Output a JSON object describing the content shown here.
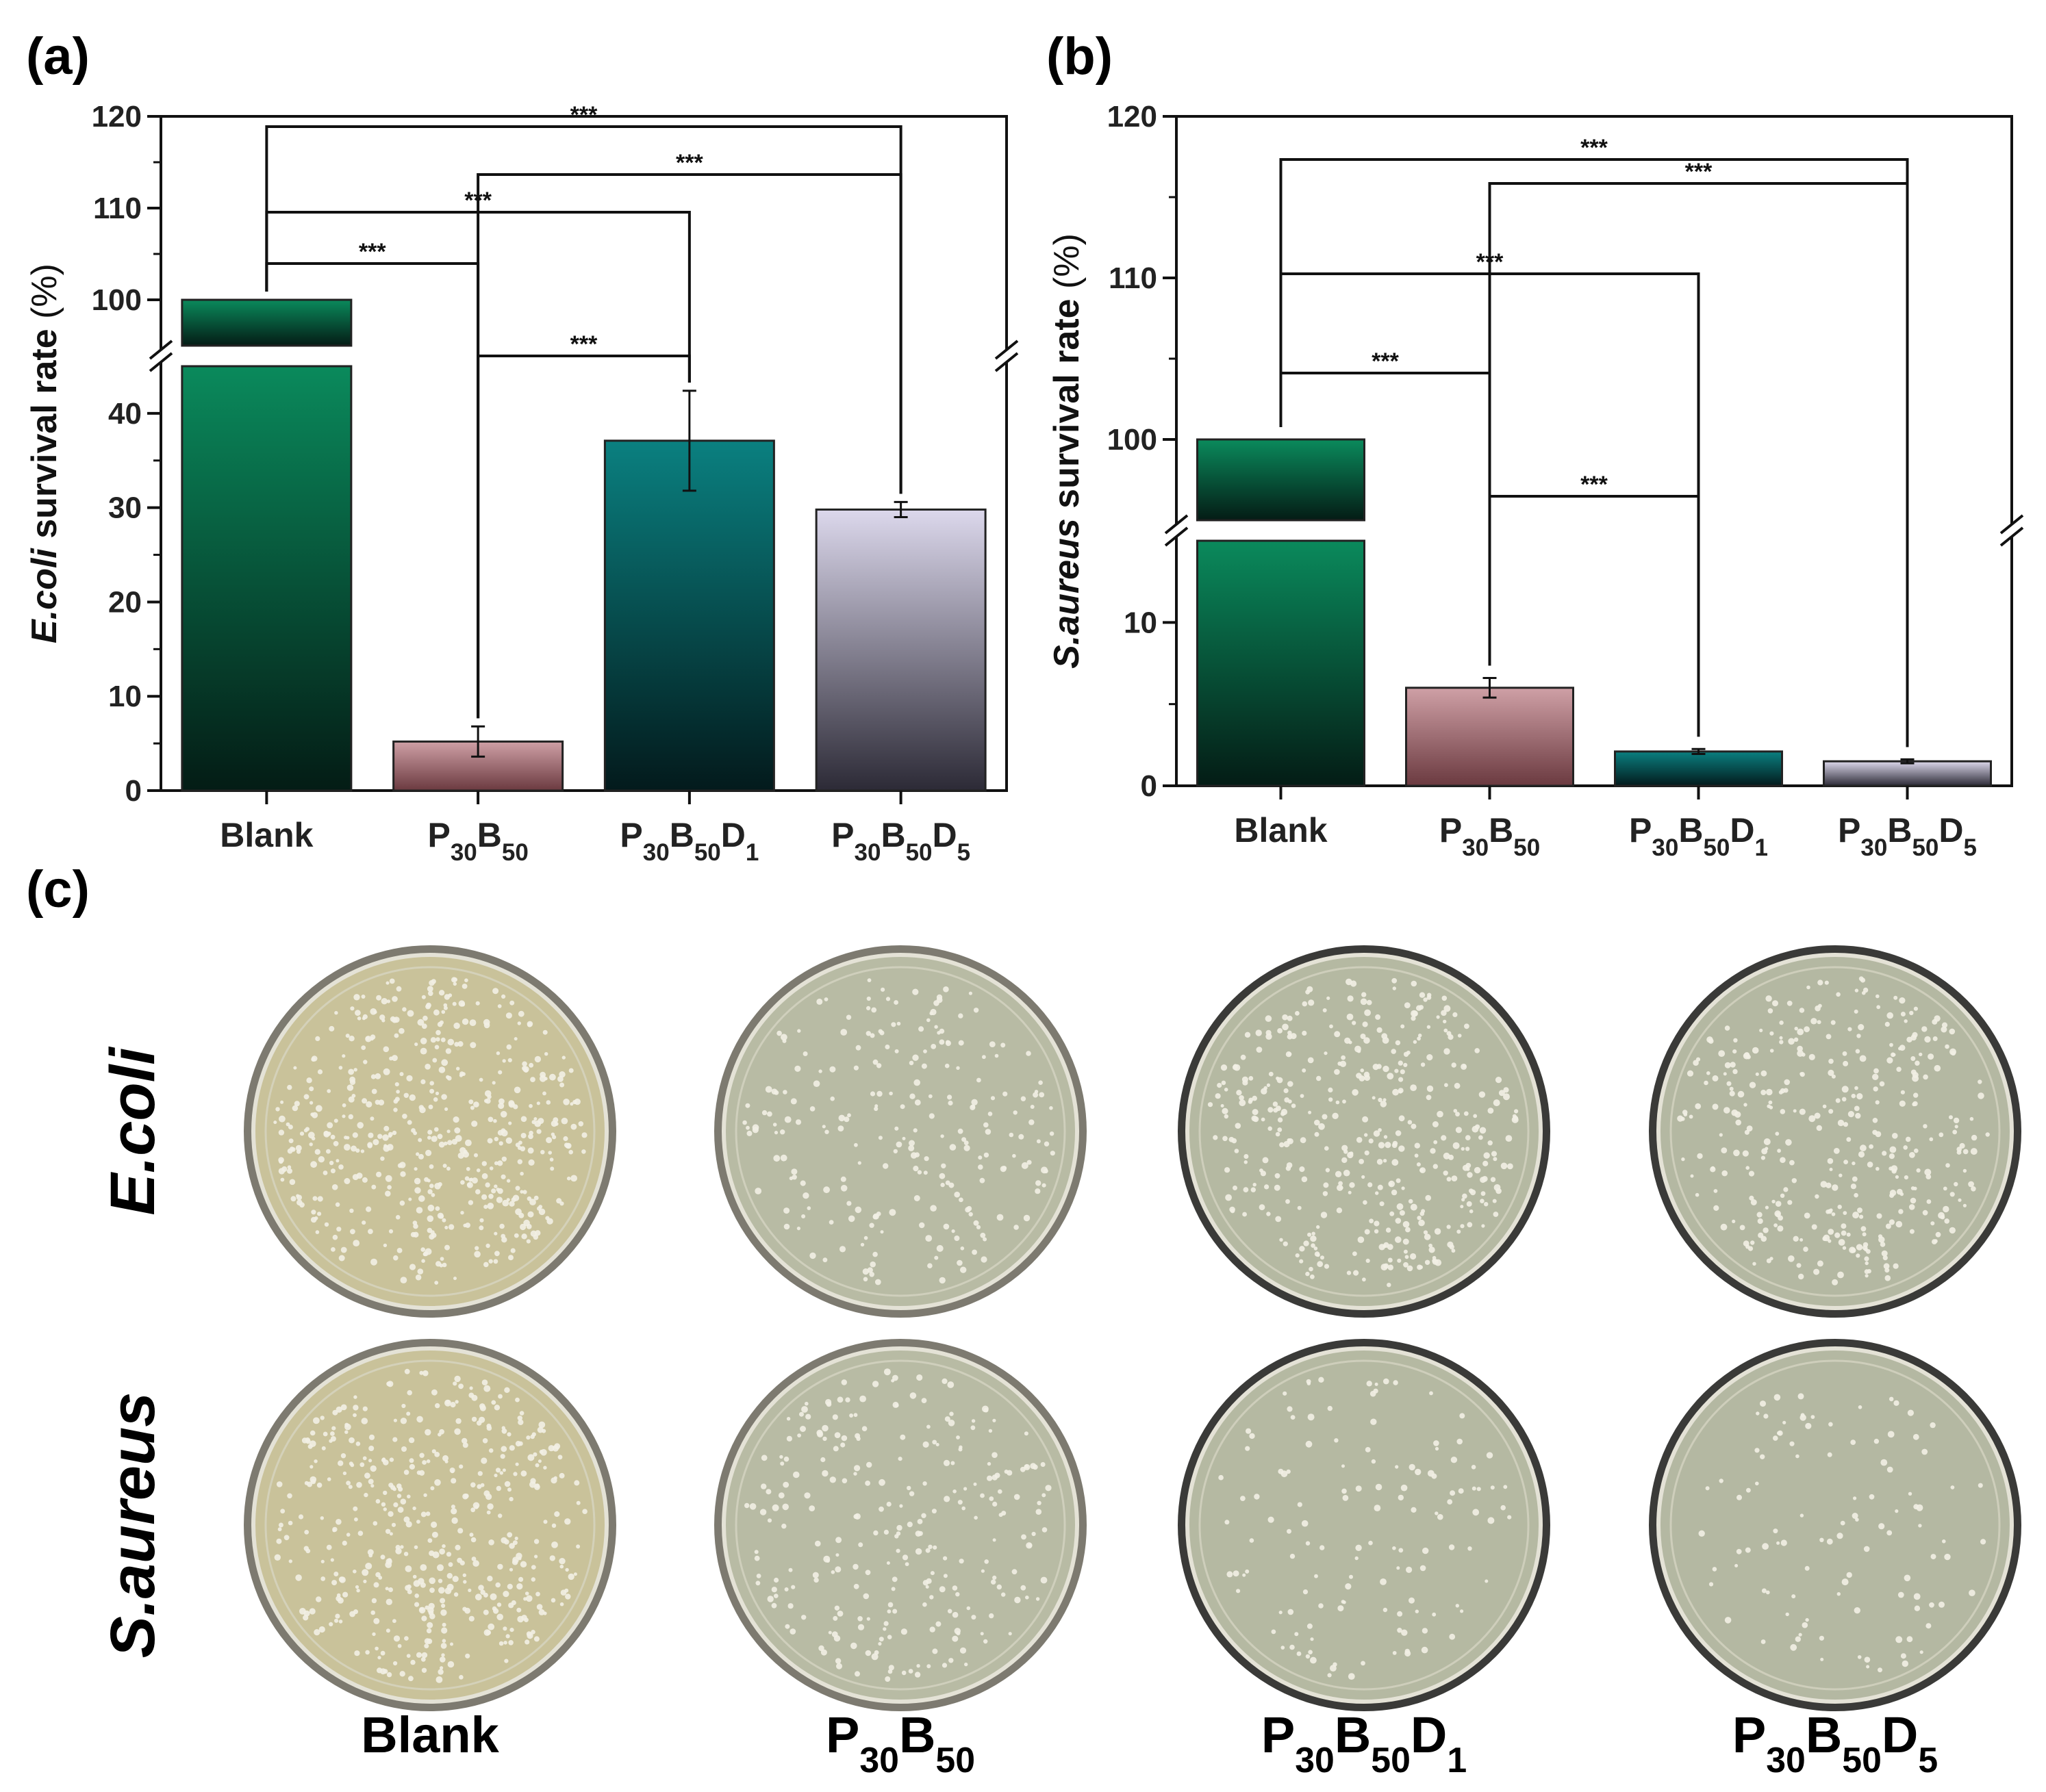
{
  "panel_labels": {
    "a": "(a)",
    "b": "(b)",
    "c": "(c)"
  },
  "chart_data": [
    {
      "type": "bar",
      "panel": "(a)",
      "categories": [
        "Blank",
        "P30B50",
        "P30B50D1",
        "P30B50D5"
      ],
      "category_parts": [
        [
          [
            "Blank",
            ""
          ]
        ],
        [
          [
            "P",
            ""
          ],
          [
            "30",
            "sub"
          ],
          [
            "B",
            ""
          ],
          [
            "50",
            "sub"
          ]
        ],
        [
          [
            "P",
            ""
          ],
          [
            "30",
            "sub"
          ],
          [
            "B",
            ""
          ],
          [
            "50",
            "sub"
          ],
          [
            "D",
            ""
          ],
          [
            "1",
            "sub"
          ]
        ],
        [
          [
            "P",
            ""
          ],
          [
            "30",
            "sub"
          ],
          [
            "B",
            ""
          ],
          [
            "50",
            "sub"
          ],
          [
            "D",
            ""
          ],
          [
            "5",
            "sub"
          ]
        ]
      ],
      "values": [
        100,
        5.2,
        37.1,
        29.8
      ],
      "errors": [
        0,
        1.6,
        5.3,
        0.8
      ],
      "ylabel_italic": "E.coli",
      "ylabel_rest": " survival rate ",
      "ylabel_unit": "(%)",
      "axis_break": true,
      "ylim_lower": [
        0,
        45
      ],
      "ylim_upper": [
        95,
        120
      ],
      "yticks_lower": [
        "0",
        "10",
        "20",
        "30",
        "40"
      ],
      "yticks_upper": [
        "100",
        "110",
        "120"
      ],
      "significance": [
        {
          "from": 0,
          "to": 1,
          "label": "***"
        },
        {
          "from": 0,
          "to": 2,
          "label": "***"
        },
        {
          "from": 1,
          "to": 3,
          "label": "***"
        },
        {
          "from": 0,
          "to": 3,
          "label": "***"
        },
        {
          "from": 1,
          "to": 2,
          "label": "***"
        }
      ],
      "bar_colors": [
        [
          "#0a8a5c",
          "#041c15"
        ],
        [
          "#cfa0a6",
          "#6b3a40"
        ],
        [
          "#0a8080",
          "#031a1c"
        ],
        [
          "#dcd8ec",
          "#2c2a36"
        ]
      ]
    },
    {
      "type": "bar",
      "panel": "(b)",
      "categories": [
        "Blank",
        "P30B50",
        "P30B50D1",
        "P30B50D5"
      ],
      "category_parts": [
        [
          [
            "Blank",
            ""
          ]
        ],
        [
          [
            "P",
            ""
          ],
          [
            "30",
            "sub"
          ],
          [
            "B",
            ""
          ],
          [
            "50",
            "sub"
          ]
        ],
        [
          [
            "P",
            ""
          ],
          [
            "30",
            "sub"
          ],
          [
            "B",
            ""
          ],
          [
            "50",
            "sub"
          ],
          [
            "D",
            ""
          ],
          [
            "1",
            "sub"
          ]
        ],
        [
          [
            "P",
            ""
          ],
          [
            "30",
            "sub"
          ],
          [
            "B",
            ""
          ],
          [
            "50",
            "sub"
          ],
          [
            "D",
            ""
          ],
          [
            "5",
            "sub"
          ]
        ]
      ],
      "values": [
        100,
        6.0,
        2.1,
        1.5
      ],
      "errors": [
        0,
        0.6,
        0.15,
        0.12
      ],
      "ylabel_italic": "S.aureus",
      "ylabel_rest": " survival rate ",
      "ylabel_unit": "(%)",
      "axis_break": true,
      "ylim_lower": [
        0,
        15
      ],
      "ylim_upper": [
        95,
        120
      ],
      "yticks_lower": [
        "0",
        "10"
      ],
      "yticks_upper": [
        "100",
        "110",
        "120"
      ],
      "significance": [
        {
          "from": 0,
          "to": 3,
          "label": "***"
        },
        {
          "from": 1,
          "to": 3,
          "label": "***"
        },
        {
          "from": 0,
          "to": 2,
          "label": "***"
        },
        {
          "from": 0,
          "to": 1,
          "label": "***"
        },
        {
          "from": 1,
          "to": 2,
          "label": "***"
        }
      ],
      "bar_colors": [
        [
          "#0a8a5c",
          "#041c15"
        ],
        [
          "#cfa0a6",
          "#6b3a40"
        ],
        [
          "#0a8080",
          "#031a1c"
        ],
        [
          "#dcd8ec",
          "#2c2a36"
        ]
      ]
    }
  ],
  "plates": {
    "rows": [
      "E.coli",
      "S.aureus"
    ],
    "columns": [
      [
        [
          "Blank",
          ""
        ]
      ],
      [
        [
          "P",
          ""
        ],
        [
          "30",
          "sub"
        ],
        [
          "B",
          ""
        ],
        [
          "50",
          "sub"
        ]
      ],
      [
        [
          "P",
          ""
        ],
        [
          "30",
          "sub"
        ],
        [
          "B",
          ""
        ],
        [
          "50",
          "sub"
        ],
        [
          "D",
          ""
        ],
        [
          "1",
          "sub"
        ]
      ],
      [
        [
          "P",
          ""
        ],
        [
          "30",
          "sub"
        ],
        [
          "B",
          ""
        ],
        [
          "50",
          "sub"
        ],
        [
          "D",
          ""
        ],
        [
          "5",
          "sub"
        ]
      ]
    ],
    "colony_density": [
      [
        1.0,
        0.45,
        0.8,
        0.7
      ],
      [
        0.9,
        0.5,
        0.25,
        0.2
      ]
    ],
    "plate_colors": [
      "#c9c29a",
      "#b8bba4",
      "#b5b9a2",
      "#b4b8a2"
    ]
  }
}
